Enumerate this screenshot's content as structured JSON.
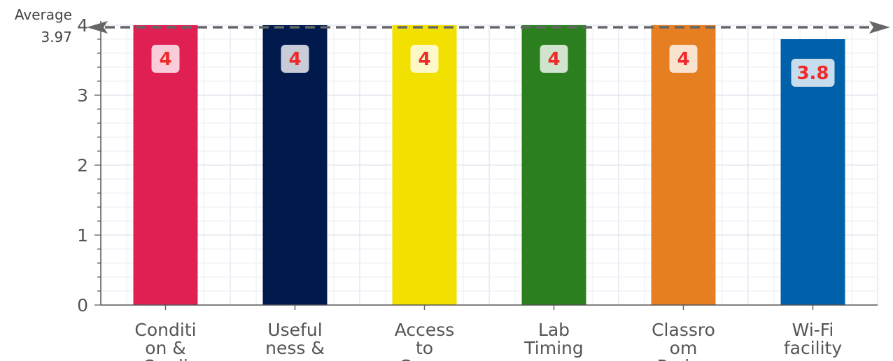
{
  "chart_data": {
    "type": "bar",
    "categories": [
      [
        "Conditi",
        "on &",
        "Quali"
      ],
      [
        "Useful",
        "ness &",
        ""
      ],
      [
        "Access",
        "to",
        "Comp"
      ],
      [
        "Lab",
        "Timing",
        ""
      ],
      [
        "Classro",
        "om",
        "Projec"
      ],
      [
        "Wi-Fi",
        "facility",
        ""
      ]
    ],
    "values": [
      4,
      4,
      4,
      4,
      4,
      3.8
    ],
    "value_labels": [
      "4",
      "4",
      "4",
      "4",
      "4",
      "3.8"
    ],
    "colors": [
      "#e01f52",
      "#001a4e",
      "#f2e000",
      "#2b7f1f",
      "#e67e22",
      "#0060aa"
    ],
    "ylim": [
      0,
      4
    ],
    "yticks": [
      "0",
      "1",
      "2",
      "3",
      "4"
    ],
    "grid": true,
    "average": {
      "label": "Average",
      "value_label": "3.97",
      "value": 3.97
    }
  }
}
